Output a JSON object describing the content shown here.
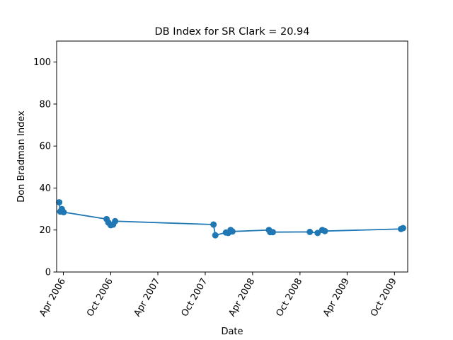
{
  "chart_data": {
    "type": "line",
    "title": "DB Index for SR Clark = 20.94",
    "xlabel": "Date",
    "ylabel": "Don Bradman Index",
    "ylim": [
      0,
      110
    ],
    "xlim": [
      "2006-03-06",
      "2009-11-21"
    ],
    "yticks": [
      0,
      20,
      40,
      60,
      80,
      100
    ],
    "xticks": [
      {
        "date": "2006-04-01",
        "label": "Apr 2006"
      },
      {
        "date": "2006-10-01",
        "label": "Oct 2006"
      },
      {
        "date": "2007-04-01",
        "label": "Apr 2007"
      },
      {
        "date": "2007-10-01",
        "label": "Oct 2007"
      },
      {
        "date": "2008-04-01",
        "label": "Apr 2008"
      },
      {
        "date": "2008-10-01",
        "label": "Oct 2008"
      },
      {
        "date": "2009-04-01",
        "label": "Apr 2009"
      },
      {
        "date": "2009-10-01",
        "label": "Oct 2009"
      }
    ],
    "grid": false,
    "legend": "none",
    "color": "#1f77b4",
    "series": [
      {
        "points": [
          {
            "x": "2006-03-16",
            "y": 33.2
          },
          {
            "x": "2006-03-20",
            "y": 28.8
          },
          {
            "x": "2006-03-26",
            "y": 30.0
          },
          {
            "x": "2006-04-02",
            "y": 28.5
          },
          {
            "x": "2006-09-15",
            "y": 25.2
          },
          {
            "x": "2006-09-22",
            "y": 23.5
          },
          {
            "x": "2006-10-01",
            "y": 22.3
          },
          {
            "x": "2006-10-10",
            "y": 22.6
          },
          {
            "x": "2006-10-18",
            "y": 24.2
          },
          {
            "x": "2007-11-02",
            "y": 22.6
          },
          {
            "x": "2007-11-09",
            "y": 17.5
          },
          {
            "x": "2007-12-20",
            "y": 18.8
          },
          {
            "x": "2007-12-29",
            "y": 18.6
          },
          {
            "x": "2008-01-07",
            "y": 20.0
          },
          {
            "x": "2008-01-14",
            "y": 19.3
          },
          {
            "x": "2008-06-03",
            "y": 20.0
          },
          {
            "x": "2008-06-08",
            "y": 19.0
          },
          {
            "x": "2008-06-18",
            "y": 19.0
          },
          {
            "x": "2008-11-08",
            "y": 19.1
          },
          {
            "x": "2008-12-08",
            "y": 18.6
          },
          {
            "x": "2008-12-26",
            "y": 20.0
          },
          {
            "x": "2009-01-05",
            "y": 19.5
          },
          {
            "x": "2009-10-26",
            "y": 20.5
          },
          {
            "x": "2009-11-03",
            "y": 20.9
          }
        ]
      }
    ]
  }
}
